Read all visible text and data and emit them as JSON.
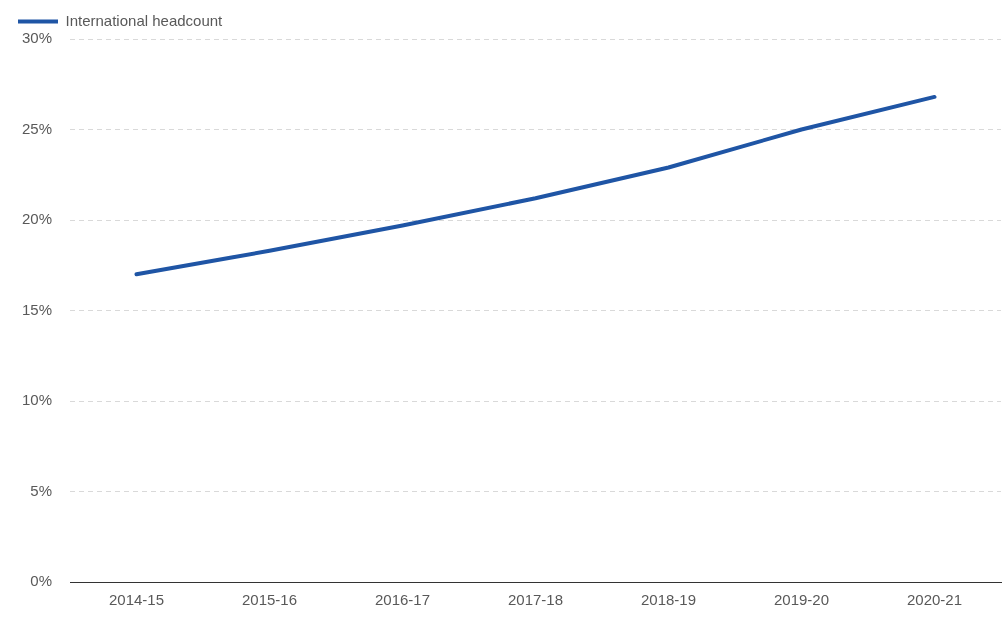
{
  "chart_data": {
    "type": "line",
    "categories": [
      "2014-15",
      "2015-16",
      "2016-17",
      "2017-18",
      "2018-19",
      "2019-20",
      "2020-21"
    ],
    "series": [
      {
        "name": "International headcount",
        "color": "#1f55a5",
        "values": [
          17.0,
          18.3,
          19.7,
          21.2,
          22.9,
          25.0,
          26.8
        ]
      }
    ],
    "ylim": [
      0,
      30
    ],
    "yticks": [
      {
        "value": 0,
        "label": "0%"
      },
      {
        "value": 5,
        "label": "5%"
      },
      {
        "value": 10,
        "label": "10%"
      },
      {
        "value": 15,
        "label": "15%"
      },
      {
        "value": 20,
        "label": "20%"
      },
      {
        "value": 25,
        "label": "25%"
      },
      {
        "value": 30,
        "label": "30%"
      }
    ],
    "grid": "y",
    "legend": "top left",
    "marker": "none",
    "line_style": "solid"
  }
}
